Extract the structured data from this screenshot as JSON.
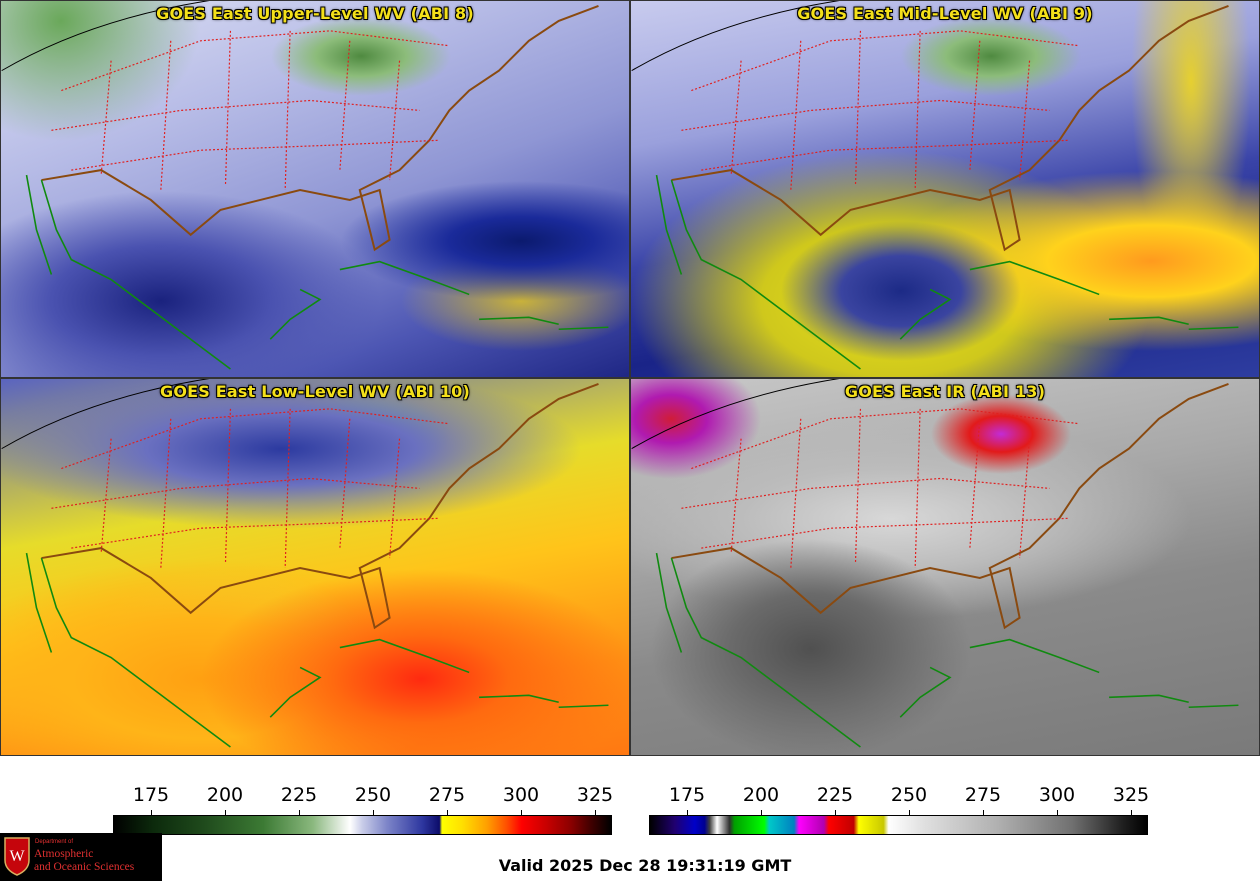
{
  "panels": [
    {
      "title": "GOES East Upper-Level WV (ABI 8)"
    },
    {
      "title": "GOES East Mid-Level WV (ABI 9)"
    },
    {
      "title": "GOES East Low-Level WV (ABI 10)"
    },
    {
      "title": "GOES East IR (ABI 13)"
    }
  ],
  "colorbars": {
    "wv": {
      "ticks": [
        "175",
        "200",
        "225",
        "250",
        "275",
        "300",
        "325"
      ]
    },
    "ir": {
      "ticks": [
        "175",
        "200",
        "225",
        "250",
        "275",
        "300",
        "325"
      ]
    }
  },
  "logo": {
    "dept": "Department of",
    "name_line1": "Atmospheric",
    "name_line2": "and Oceanic Sciences",
    "shield_letter": "W"
  },
  "footer": {
    "valid_time": "Valid 2025 Dec 28 19:31:19 GMT"
  },
  "colors": {
    "title_text": "#f4e01a",
    "state_borders": "#e02020",
    "coastline_us": "#8a4a10",
    "coastline_other": "#108a10",
    "logo_red": "#e03030"
  }
}
